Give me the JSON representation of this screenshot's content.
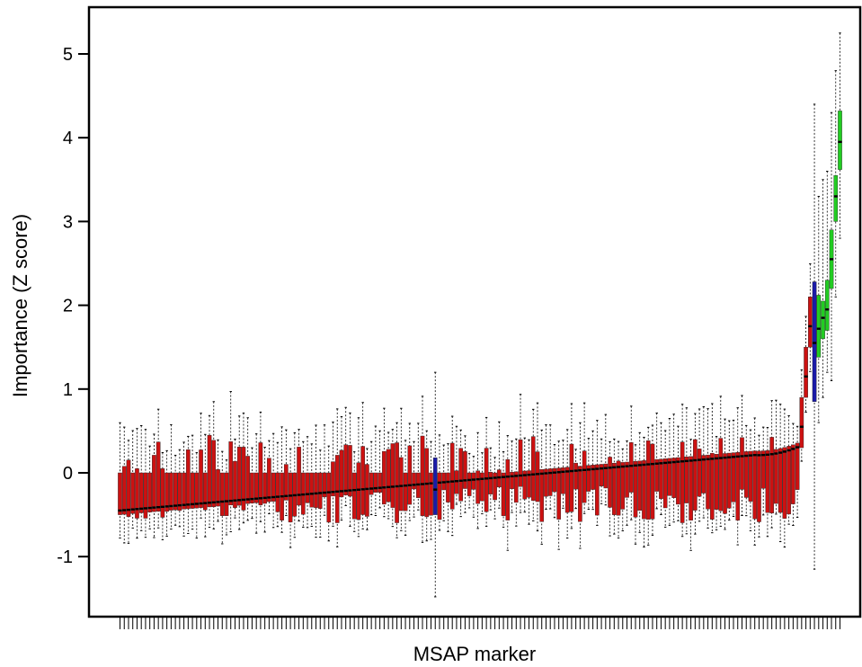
{
  "chart_data": {
    "type": "boxplot",
    "title": "",
    "xlabel": "MSAP marker",
    "ylabel": "Importance (Z score)",
    "ylim": [
      -1.75,
      5.6
    ],
    "yticks": [
      -1,
      0,
      1,
      2,
      3,
      4,
      5
    ],
    "ytick_labels": [
      "-1",
      "0",
      "1",
      "2",
      "3",
      "4",
      "5"
    ],
    "n_markers": 170,
    "grid": false,
    "legend": "none",
    "colors": {
      "rejected": "#cc1111",
      "tentative": "#1a1aa8",
      "confirmed": "#22cc22",
      "whisker": "#000000",
      "median": "#000000"
    },
    "series": [
      {
        "status": "rejected",
        "median_range": [
          -0.45,
          0.38
        ],
        "box_range": [
          -0.78,
          0.5
        ],
        "whisker_range": [
          -1.2,
          0.82
        ]
      },
      {
        "status": "tentative",
        "markers": [
          {
            "index": 75,
            "median": -0.2,
            "q1": -0.5,
            "q3": 0.18,
            "min": -1.48,
            "max": 1.2
          },
          {
            "index": 164,
            "median": 1.55,
            "q1": 0.85,
            "q3": 2.28,
            "min": -1.15,
            "max": 4.4
          }
        ]
      },
      {
        "status": "confirmed",
        "markers": [
          {
            "index": 165,
            "median": 1.72,
            "q1": 1.38,
            "q3": 2.12,
            "min": 0.6,
            "max": 3.3
          },
          {
            "index": 166,
            "median": 1.85,
            "q1": 1.6,
            "q3": 2.05,
            "min": 0.9,
            "max": 3.5
          },
          {
            "index": 167,
            "median": 1.95,
            "q1": 1.7,
            "q3": 2.3,
            "min": 1.2,
            "max": 3.6
          },
          {
            "index": 168,
            "median": 2.55,
            "q1": 2.2,
            "q3": 2.9,
            "min": 1.1,
            "max": 4.3
          },
          {
            "index": 169,
            "median": 3.3,
            "q1": 3.0,
            "q3": 3.55,
            "min": 2.1,
            "max": 4.8
          },
          {
            "index": 170,
            "median": 3.95,
            "q1": 3.62,
            "q3": 4.32,
            "min": 2.8,
            "max": 5.25
          }
        ]
      }
    ]
  }
}
